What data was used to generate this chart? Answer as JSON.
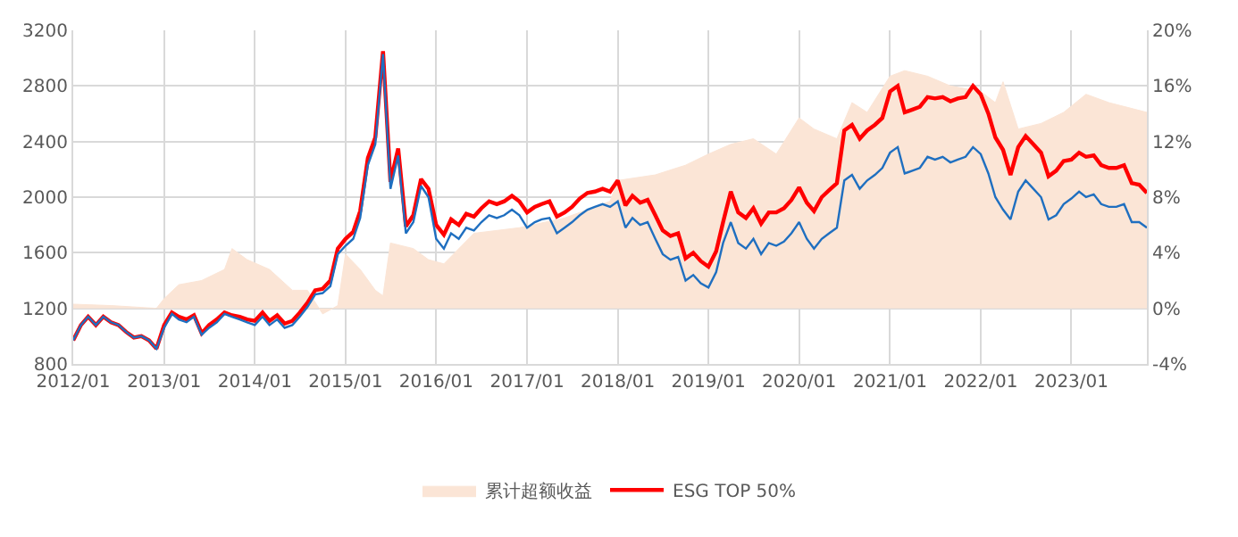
{
  "chart_data": {
    "type": "line",
    "x": [
      "2012-01",
      "2012-02",
      "2012-03",
      "2012-04",
      "2012-05",
      "2012-06",
      "2012-07",
      "2012-08",
      "2012-09",
      "2012-10",
      "2012-11",
      "2012-12",
      "2013-01",
      "2013-02",
      "2013-03",
      "2013-04",
      "2013-05",
      "2013-06",
      "2013-07",
      "2013-08",
      "2013-09",
      "2013-10",
      "2013-11",
      "2013-12",
      "2014-01",
      "2014-02",
      "2014-03",
      "2014-04",
      "2014-05",
      "2014-06",
      "2014-07",
      "2014-08",
      "2014-09",
      "2014-10",
      "2014-11",
      "2014-12",
      "2015-01",
      "2015-02",
      "2015-03",
      "2015-04",
      "2015-05",
      "2015-06",
      "2015-07",
      "2015-08",
      "2015-09",
      "2015-10",
      "2015-11",
      "2015-12",
      "2016-01",
      "2016-02",
      "2016-03",
      "2016-04",
      "2016-05",
      "2016-06",
      "2016-07",
      "2016-08",
      "2016-09",
      "2016-10",
      "2016-11",
      "2016-12",
      "2017-01",
      "2017-02",
      "2017-03",
      "2017-04",
      "2017-05",
      "2017-06",
      "2017-07",
      "2017-08",
      "2017-09",
      "2017-10",
      "2017-11",
      "2017-12",
      "2018-01",
      "2018-02",
      "2018-03",
      "2018-04",
      "2018-05",
      "2018-06",
      "2018-07",
      "2018-08",
      "2018-09",
      "2018-10",
      "2018-11",
      "2018-12",
      "2019-01",
      "2019-02",
      "2019-03",
      "2019-04",
      "2019-05",
      "2019-06",
      "2019-07",
      "2019-08",
      "2019-09",
      "2019-10",
      "2019-11",
      "2019-12",
      "2020-01",
      "2020-02",
      "2020-03",
      "2020-04",
      "2020-05",
      "2020-06",
      "2020-07",
      "2020-08",
      "2020-09",
      "2020-10",
      "2020-11",
      "2020-12",
      "2021-01",
      "2021-02",
      "2021-03",
      "2021-04",
      "2021-05",
      "2021-06",
      "2021-07",
      "2021-08",
      "2021-09",
      "2021-10",
      "2021-11",
      "2021-12",
      "2022-01",
      "2022-02",
      "2022-03",
      "2022-04",
      "2022-05",
      "2022-06",
      "2022-07",
      "2022-08",
      "2022-09",
      "2022-10",
      "2022-11",
      "2022-12",
      "2023-01",
      "2023-02",
      "2023-03",
      "2023-04",
      "2023-05",
      "2023-06",
      "2023-07",
      "2023-08",
      "2023-09",
      "2023-10",
      "2023-11"
    ],
    "series": [
      {
        "name": "累计超额收益",
        "type": "area",
        "axis": "y2",
        "color": "#fbe5d6",
        "x": [
          "2012-01",
          "2012-06",
          "2012-12",
          "2013-01",
          "2013-03",
          "2013-06",
          "2013-09",
          "2013-10",
          "2013-12",
          "2014-03",
          "2014-06",
          "2014-08",
          "2014-10",
          "2014-12",
          "2015-01",
          "2015-03",
          "2015-05",
          "2015-06",
          "2015-07",
          "2015-10",
          "2015-12",
          "2016-02",
          "2016-06",
          "2016-12",
          "2017-06",
          "2017-12",
          "2018-01",
          "2018-06",
          "2018-10",
          "2019-01",
          "2019-04",
          "2019-07",
          "2019-10",
          "2020-01",
          "2020-03",
          "2020-06",
          "2020-08",
          "2020-10",
          "2021-01",
          "2021-03",
          "2021-06",
          "2021-09",
          "2022-01",
          "2022-03",
          "2022-04",
          "2022-06",
          "2022-09",
          "2022-12",
          "2023-03",
          "2023-06",
          "2023-11"
        ],
        "values": [
          0.3,
          0.2,
          0,
          0.7,
          1.7,
          2.0,
          2.8,
          4.3,
          3.5,
          2.8,
          1.3,
          1.3,
          -0.4,
          0.2,
          3.9,
          2.8,
          1.3,
          0.9,
          4.7,
          4.3,
          3.5,
          3.2,
          5.4,
          5.8,
          6.5,
          7.7,
          9.2,
          9.6,
          10.3,
          11.1,
          11.8,
          12.2,
          11.1,
          13.7,
          12.9,
          12.2,
          14.8,
          14.1,
          16.7,
          17.1,
          16.7,
          16.0,
          15.6,
          14.8,
          16.3,
          12.9,
          13.3,
          14.1,
          15.4,
          14.8,
          14.1
        ]
      },
      {
        "name": "ESG TOP 50%",
        "color": "#ff0000",
        "values": [
          970,
          1080,
          1140,
          1080,
          1140,
          1100,
          1080,
          1030,
          990,
          1000,
          970,
          910,
          1080,
          1170,
          1140,
          1120,
          1150,
          1020,
          1080,
          1120,
          1170,
          1150,
          1140,
          1120,
          1110,
          1170,
          1110,
          1150,
          1090,
          1110,
          1170,
          1240,
          1330,
          1340,
          1400,
          1630,
          1700,
          1750,
          1900,
          2280,
          2430,
          3050,
          2110,
          2350,
          1790,
          1870,
          2130,
          2060,
          1800,
          1730,
          1840,
          1800,
          1880,
          1860,
          1920,
          1970,
          1950,
          1970,
          2010,
          1970,
          1890,
          1930,
          1950,
          1970,
          1860,
          1890,
          1930,
          1990,
          2030,
          2040,
          2060,
          2040,
          2120,
          1940,
          2010,
          1960,
          1980,
          1870,
          1760,
          1720,
          1740,
          1560,
          1600,
          1540,
          1500,
          1610,
          1820,
          2040,
          1890,
          1850,
          1920,
          1810,
          1890,
          1890,
          1920,
          1980,
          2070,
          1960,
          1900,
          2000,
          2050,
          2100,
          2480,
          2520,
          2420,
          2480,
          2520,
          2570,
          2760,
          2800,
          2610,
          2630,
          2650,
          2720,
          2710,
          2720,
          2690,
          2710,
          2720,
          2800,
          2740,
          2600,
          2430,
          2340,
          2160,
          2360,
          2440,
          2380,
          2320,
          2150,
          2190,
          2260,
          2270,
          2320,
          2290,
          2300,
          2230,
          2210,
          2210,
          2230,
          2100,
          2090,
          2030
        ]
      },
      {
        "color": "#1f6fc0",
        "values": [
          970,
          1080,
          1140,
          1080,
          1140,
          1100,
          1080,
          1030,
          990,
          1000,
          970,
          910,
          1060,
          1160,
          1120,
          1100,
          1140,
          1010,
          1060,
          1100,
          1160,
          1140,
          1120,
          1100,
          1080,
          1140,
          1080,
          1120,
          1060,
          1080,
          1140,
          1210,
          1300,
          1310,
          1360,
          1590,
          1650,
          1700,
          1850,
          2230,
          2380,
          3030,
          2060,
          2300,
          1740,
          1820,
          2080,
          2000,
          1700,
          1630,
          1740,
          1700,
          1780,
          1760,
          1820,
          1870,
          1850,
          1870,
          1910,
          1870,
          1780,
          1820,
          1840,
          1850,
          1740,
          1780,
          1820,
          1870,
          1910,
          1930,
          1950,
          1930,
          1970,
          1780,
          1850,
          1800,
          1820,
          1700,
          1590,
          1550,
          1570,
          1400,
          1440,
          1380,
          1350,
          1460,
          1670,
          1820,
          1670,
          1630,
          1700,
          1590,
          1670,
          1650,
          1680,
          1740,
          1820,
          1700,
          1630,
          1700,
          1740,
          1780,
          2120,
          2160,
          2060,
          2120,
          2160,
          2210,
          2320,
          2360,
          2170,
          2190,
          2210,
          2290,
          2270,
          2290,
          2250,
          2270,
          2290,
          2360,
          2310,
          2170,
          2000,
          1910,
          1840,
          2040,
          2120,
          2060,
          2000,
          1840,
          1870,
          1950,
          1990,
          2040,
          2000,
          2020,
          1950,
          1930,
          1930,
          1950,
          1820,
          1820,
          1780
        ]
      }
    ],
    "xlim": [
      "2012-01",
      "2023-11"
    ],
    "xticks": [
      {
        "value": "2012-01",
        "label": "2012/01"
      },
      {
        "value": "2013-01",
        "label": "2013/01"
      },
      {
        "value": "2014-01",
        "label": "2014/01"
      },
      {
        "value": "2015-01",
        "label": "2015/01"
      },
      {
        "value": "2016-01",
        "label": "2016/01"
      },
      {
        "value": "2017-01",
        "label": "2017/01"
      },
      {
        "value": "2018-01",
        "label": "2018/01"
      },
      {
        "value": "2019-01",
        "label": "2019/01"
      },
      {
        "value": "2020-01",
        "label": "2020/01"
      },
      {
        "value": "2021-01",
        "label": "2021/01"
      },
      {
        "value": "2022-01",
        "label": "2022/01"
      },
      {
        "value": "2023-01",
        "label": "2023/01"
      }
    ],
    "ylim": [
      800,
      3200
    ],
    "yticks": [
      800,
      1200,
      1600,
      2000,
      2400,
      2800,
      3200
    ],
    "y2lim": [
      -4,
      20
    ],
    "y2ticks": [
      {
        "value": -4,
        "label": "-4%"
      },
      {
        "value": 0,
        "label": "0%"
      },
      {
        "value": 4,
        "label": "4%"
      },
      {
        "value": 8,
        "label": "8%"
      },
      {
        "value": 12,
        "label": "12%"
      },
      {
        "value": 16,
        "label": "16%"
      },
      {
        "value": 20,
        "label": "20%"
      }
    ],
    "grid": true,
    "legend": "bottom",
    "marker": "none",
    "line_style": "solid"
  }
}
